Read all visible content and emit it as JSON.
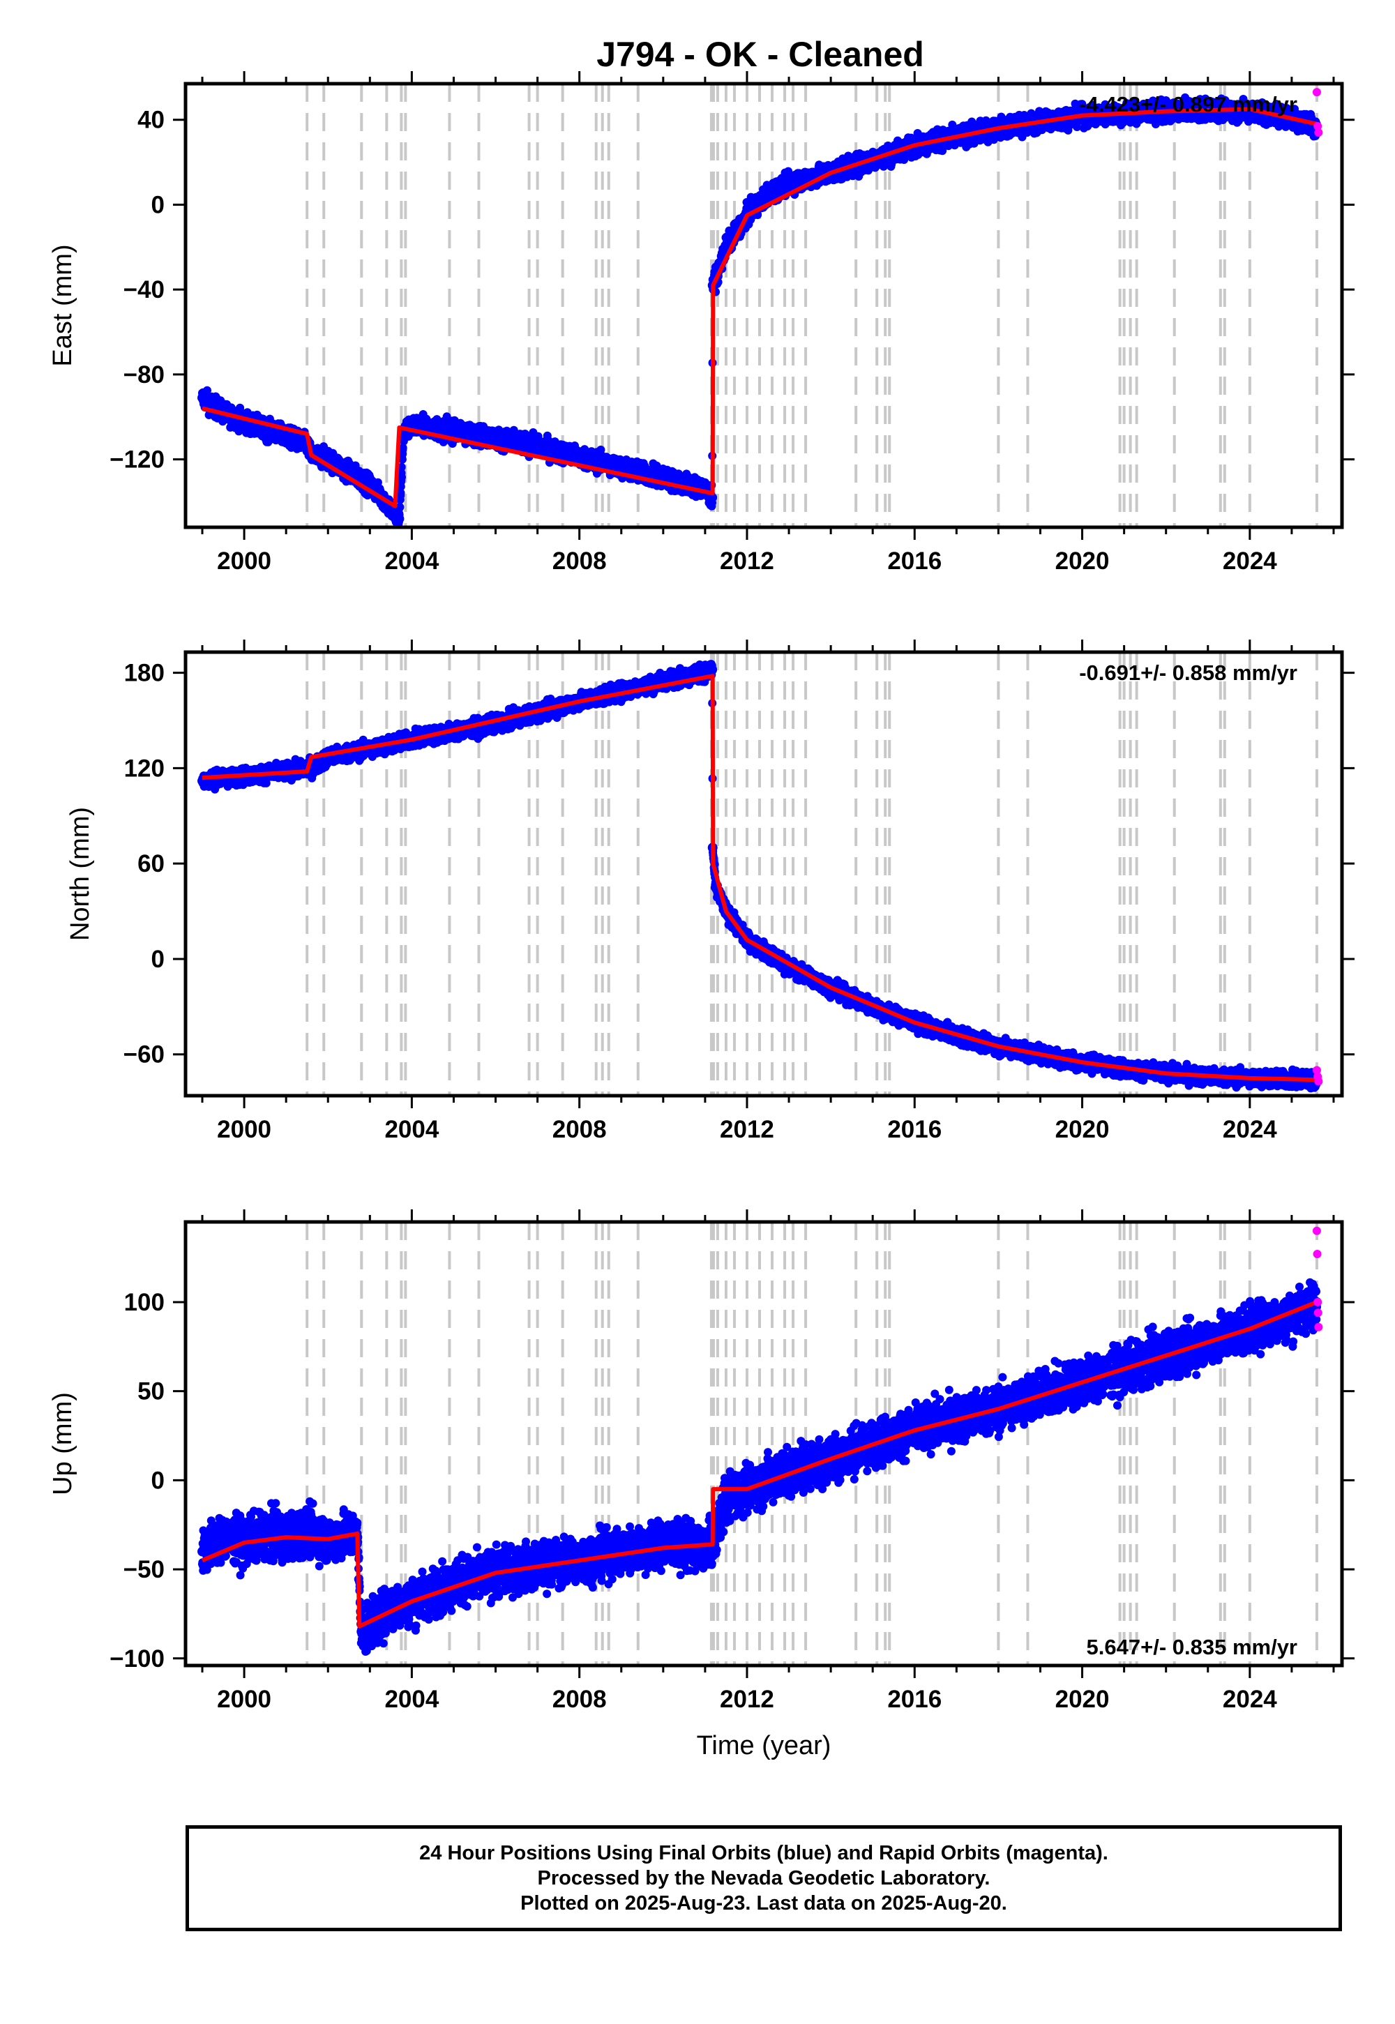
{
  "title": "J794  - OK - Cleaned",
  "xlabel": "Time (year)",
  "caption": {
    "line1": "24 Hour Positions Using Final Orbits (blue) and Rapid Orbits (magenta).",
    "line2": "Processed by the Nevada Geodetic Laboratory.",
    "line3": "Plotted on 2025-Aug-23. Last data on 2025-Aug-20."
  },
  "colors": {
    "final_orbits": "#0000ff",
    "rapid_orbits": "#ff00ff",
    "model": "#ff0000",
    "event_lines": "#c8c8c8"
  },
  "chart_data": [
    {
      "type": "scatter",
      "panel": "east",
      "ylabel": "East (mm)",
      "rate_label": "-4.423+/- 0.897 mm/yr",
      "xlim": [
        1998.6,
        2026.2
      ],
      "ylim": [
        -152,
        57
      ],
      "xticks": [
        2000,
        2004,
        2008,
        2012,
        2016,
        2020,
        2024
      ],
      "yticks": [
        40,
        0,
        -40,
        -80,
        -120
      ],
      "grid": false,
      "series": [
        {
          "role": "final",
          "x": [
            1999.0,
            1999.5,
            2000.0,
            2000.5,
            2001.0,
            2001.5,
            2001.6,
            2002.0,
            2002.5,
            2003.0,
            2003.3,
            2003.6,
            2003.7,
            2003.8,
            2004.0,
            2004.5,
            2005.0,
            2006.0,
            2007.0,
            2008.0,
            2009.0,
            2010.0,
            2011.0,
            2011.17,
            2011.18,
            2011.3,
            2011.5,
            2012.0,
            2012.5,
            2013.0,
            2014.0,
            2015.0,
            2016.0,
            2017.0,
            2018.0,
            2019.0,
            2020.0,
            2021.0,
            2022.0,
            2023.0,
            2024.0,
            2025.0,
            2025.6
          ],
          "y": [
            -91,
            -98,
            -102,
            -106,
            -109,
            -113,
            -118,
            -120,
            -126,
            -132,
            -138,
            -146,
            -148,
            -108,
            -104,
            -105,
            -107,
            -110,
            -114,
            -119,
            -124,
            -129,
            -134,
            -138,
            -38,
            -32,
            -20,
            -5,
            5,
            10,
            15,
            21,
            28,
            32,
            36,
            39,
            42,
            43,
            44,
            45,
            44,
            41,
            37
          ]
        },
        {
          "role": "rapid",
          "x": [
            2025.6,
            2025.62,
            2025.64
          ],
          "y": [
            53,
            37,
            34
          ]
        },
        {
          "role": "model",
          "x": [
            1999.0,
            2001.5,
            2001.6,
            2003.6,
            2003.7,
            2011.18,
            2011.19,
            2012.0,
            2014.0,
            2016.0,
            2018.0,
            2020.0,
            2022.0,
            2024.0,
            2025.6
          ],
          "y": [
            -96,
            -108,
            -118,
            -142,
            -105,
            -136,
            -38,
            -5,
            15,
            28,
            36,
            42,
            44,
            45,
            38
          ]
        }
      ]
    },
    {
      "type": "scatter",
      "panel": "north",
      "ylabel": "North (mm)",
      "rate_label": "-0.691+/- 0.858 mm/yr",
      "xlim": [
        1998.6,
        2026.2
      ],
      "ylim": [
        -86,
        193
      ],
      "xticks": [
        2000,
        2004,
        2008,
        2012,
        2016,
        2020,
        2024
      ],
      "yticks": [
        180,
        120,
        60,
        0,
        -60
      ],
      "grid": false,
      "series": [
        {
          "role": "final",
          "x": [
            1999.0,
            2000.0,
            2001.0,
            2001.6,
            2002.0,
            2003.0,
            2004.0,
            2005.0,
            2006.0,
            2007.0,
            2008.0,
            2009.0,
            2010.0,
            2011.0,
            2011.17,
            2011.18,
            2011.25,
            2011.5,
            2012.0,
            2013.0,
            2014.0,
            2015.0,
            2016.0,
            2017.0,
            2018.0,
            2019.0,
            2020.0,
            2021.0,
            2022.0,
            2023.0,
            2024.0,
            2025.0,
            2025.6
          ],
          "y": [
            112,
            115,
            118,
            120,
            127,
            132,
            138,
            143,
            148,
            155,
            162,
            168,
            175,
            180,
            182,
            70,
            45,
            30,
            12,
            -5,
            -18,
            -30,
            -40,
            -48,
            -55,
            -60,
            -65,
            -69,
            -72,
            -74,
            -75,
            -76,
            -76
          ]
        },
        {
          "role": "rapid",
          "x": [
            2025.6,
            2025.62,
            2025.64
          ],
          "y": [
            -70,
            -74,
            -77
          ]
        },
        {
          "role": "model",
          "x": [
            1999.0,
            2001.5,
            2001.6,
            2004.0,
            2008.0,
            2011.18,
            2011.19,
            2011.5,
            2012.0,
            2014.0,
            2016.0,
            2018.0,
            2020.0,
            2022.0,
            2024.0,
            2025.6
          ],
          "y": [
            114,
            118,
            127,
            138,
            162,
            178,
            60,
            30,
            12,
            -18,
            -40,
            -55,
            -65,
            -72,
            -75,
            -76
          ]
        }
      ]
    },
    {
      "type": "scatter",
      "panel": "up",
      "ylabel": "Up (mm)",
      "rate_label": "5.647+/- 0.835 mm/yr",
      "xlim": [
        1998.6,
        2026.2
      ],
      "ylim": [
        -104,
        145
      ],
      "xticks": [
        2000,
        2004,
        2008,
        2012,
        2016,
        2020,
        2024
      ],
      "yticks": [
        100,
        50,
        0,
        -50,
        -100
      ],
      "grid": false,
      "series": [
        {
          "role": "final",
          "x": [
            1999.0,
            1999.5,
            2000.0,
            2000.5,
            2001.0,
            2001.5,
            2002.0,
            2002.5,
            2002.7,
            2002.8,
            2003.0,
            2003.5,
            2004.0,
            2005.0,
            2006.0,
            2007.0,
            2008.0,
            2009.0,
            2010.0,
            2011.0,
            2011.18,
            2011.5,
            2012.0,
            2013.0,
            2014.0,
            2015.0,
            2016.0,
            2017.0,
            2018.0,
            2019.0,
            2020.0,
            2021.0,
            2022.0,
            2023.0,
            2024.0,
            2025.0,
            2025.6
          ],
          "y": [
            -40,
            -32,
            -35,
            -30,
            -33,
            -28,
            -34,
            -30,
            -32,
            -85,
            -82,
            -72,
            -68,
            -58,
            -52,
            -48,
            -45,
            -40,
            -36,
            -38,
            -36,
            -10,
            -5,
            5,
            12,
            20,
            28,
            34,
            40,
            48,
            55,
            62,
            70,
            78,
            85,
            92,
            100
          ]
        },
        {
          "role": "rapid",
          "x": [
            2025.6,
            2025.61,
            2025.62,
            2025.63,
            2025.64
          ],
          "y": [
            140,
            127,
            100,
            94,
            86
          ]
        },
        {
          "role": "model",
          "x": [
            1999.0,
            2000.0,
            2001.0,
            2002.0,
            2002.7,
            2002.75,
            2004.0,
            2006.0,
            2008.0,
            2010.0,
            2011.18,
            2011.19,
            2012.0,
            2014.0,
            2016.0,
            2018.0,
            2020.0,
            2022.0,
            2024.0,
            2025.6
          ],
          "y": [
            -45,
            -35,
            -32,
            -33,
            -30,
            -82,
            -68,
            -52,
            -45,
            -38,
            -36,
            -5,
            -5,
            12,
            28,
            40,
            55,
            70,
            85,
            100
          ]
        }
      ]
    }
  ],
  "event_lines": [
    2001.5,
    2001.9,
    2002.8,
    2003.4,
    2003.75,
    2003.85,
    2004.9,
    2005.6,
    2006.8,
    2007.0,
    2007.6,
    2008.4,
    2008.55,
    2008.7,
    2009.4,
    2011.15,
    2011.2,
    2011.3,
    2011.5,
    2011.7,
    2012.0,
    2012.3,
    2012.6,
    2012.9,
    2013.1,
    2013.4,
    2014.6,
    2015.1,
    2015.3,
    2015.4,
    2018.0,
    2018.7,
    2020.9,
    2021.0,
    2021.15,
    2021.3,
    2022.2,
    2023.3,
    2023.4,
    2024.0,
    2025.6
  ]
}
